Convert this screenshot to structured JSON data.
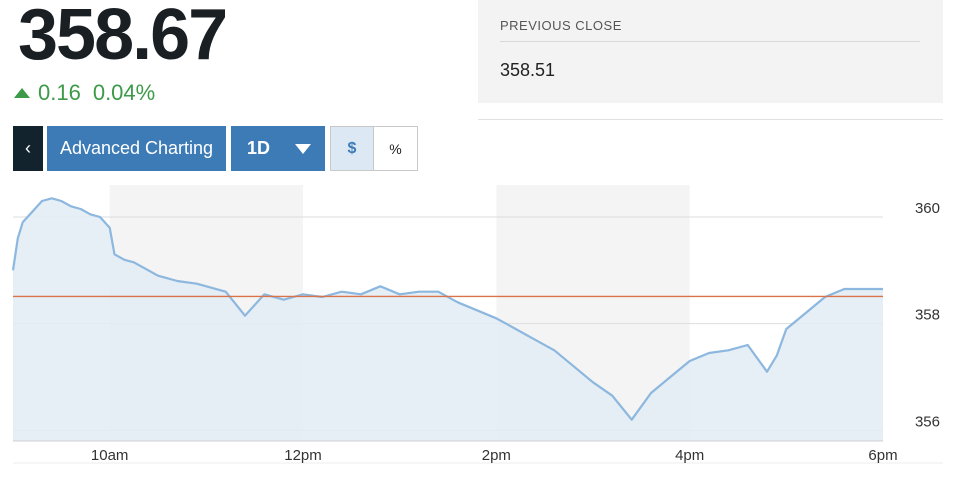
{
  "quote": {
    "last_price": "358.67",
    "change": "0.16",
    "change_percent": "0.04%",
    "direction_icon": "triangle-up-icon",
    "positive_color": "#3c9a48"
  },
  "previous_close": {
    "label": "PREVIOUS CLOSE",
    "value": "358.51"
  },
  "toolbar": {
    "back_icon": "chevron-left-icon",
    "back_label": "‹",
    "advanced_label": "Advanced Charting",
    "range_value": "1D",
    "range_icon": "caret-down-icon",
    "dollar_label": "$",
    "percent_label": "%"
  },
  "chart_data": {
    "type": "area",
    "x_ticks": [
      "10am",
      "12pm",
      "2pm",
      "4pm",
      "6pm"
    ],
    "y_ticks": [
      360,
      358,
      356
    ],
    "ylim": [
      355.8,
      360.6
    ],
    "xlim": [
      9.0,
      18.0
    ],
    "reference_line": {
      "value": 358.51,
      "color": "#d9744a"
    },
    "line_color": "#8cb7de",
    "fill_color": "#e2ebf4",
    "series": [
      {
        "x": [
          9.0,
          9.05,
          9.1,
          9.2,
          9.3,
          9.4,
          9.5,
          9.6,
          9.7,
          9.8,
          9.9,
          10.0,
          10.05,
          10.15,
          10.25,
          10.4,
          10.5,
          10.7,
          10.9,
          11.0,
          11.2,
          11.4,
          11.6,
          11.8,
          11.9,
          12.0,
          12.2,
          12.4,
          12.6,
          12.8,
          13.0,
          13.2,
          13.4,
          13.6,
          13.8,
          14.0,
          14.2,
          14.4,
          14.6,
          14.8,
          15.0,
          15.2,
          15.4,
          15.6,
          15.8,
          16.0,
          16.2,
          16.4,
          16.6,
          16.8,
          16.9,
          17.0,
          17.2,
          17.4,
          17.6,
          17.8,
          18.0
        ],
        "y": [
          359.0,
          359.6,
          359.9,
          360.1,
          360.3,
          360.35,
          360.3,
          360.2,
          360.15,
          360.05,
          360.0,
          359.8,
          359.3,
          359.2,
          359.15,
          359.0,
          358.9,
          358.8,
          358.75,
          358.7,
          358.6,
          358.15,
          358.55,
          358.45,
          358.5,
          358.55,
          358.5,
          358.6,
          358.55,
          358.7,
          358.55,
          358.6,
          358.6,
          358.4,
          358.25,
          358.1,
          357.9,
          357.7,
          357.5,
          357.2,
          356.9,
          356.65,
          356.2,
          356.7,
          357.0,
          357.3,
          357.45,
          357.5,
          357.6,
          357.1,
          357.4,
          357.9,
          358.2,
          358.5,
          358.65,
          358.65,
          358.65
        ]
      }
    ]
  }
}
